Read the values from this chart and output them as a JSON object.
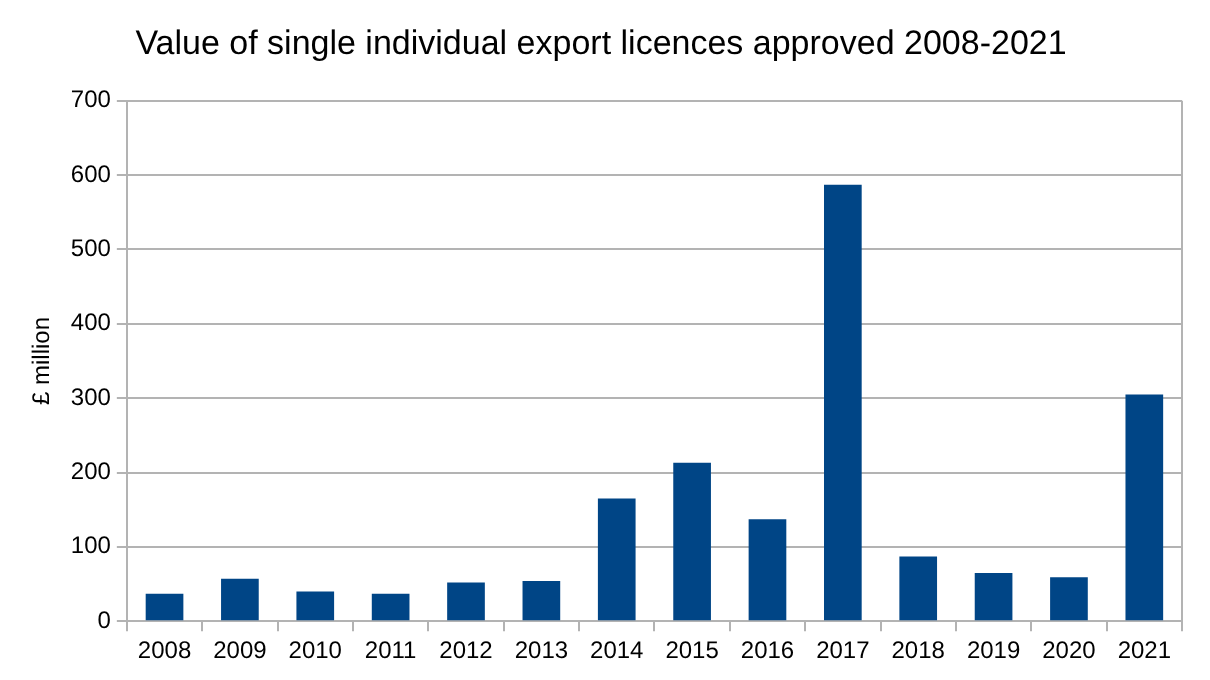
{
  "chart_data": {
    "type": "bar",
    "title": "Value of single individual export licences approved 2008-2021",
    "ylabel": "£ million",
    "categories": [
      "2008",
      "2009",
      "2010",
      "2011",
      "2012",
      "2013",
      "2014",
      "2015",
      "2016",
      "2017",
      "2018",
      "2019",
      "2020",
      "2021"
    ],
    "values": [
      37,
      57,
      40,
      37,
      52,
      54,
      165,
      213,
      137,
      587,
      87,
      65,
      59,
      305
    ],
    "color": "#004586",
    "ylim": [
      0,
      700
    ],
    "yticks": [
      0,
      100,
      200,
      300,
      400,
      500,
      600,
      700
    ],
    "grid": "y",
    "legend": false
  }
}
